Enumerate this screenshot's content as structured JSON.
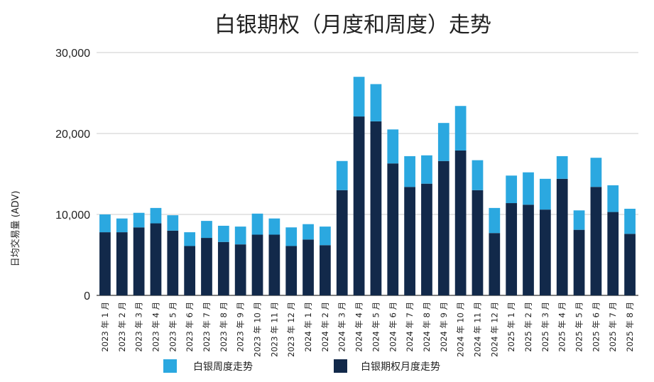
{
  "chart_data": {
    "type": "bar",
    "stacked": true,
    "title": "白银期权（月度和周度）走势",
    "ylabel": "日均交易量 (ADV)",
    "xlabel": "",
    "ylim": [
      0,
      30000
    ],
    "yticks": [
      "0",
      "10,000",
      "20,000",
      "30,000"
    ],
    "ytick_values": [
      0,
      10000,
      20000,
      30000
    ],
    "grid": true,
    "legend_position": "bottom",
    "categories": [
      "2023 年 1 月",
      "2023 年 2 月",
      "2023 年 3 月",
      "2023 年 4 月",
      "2023 年 5 月",
      "2023 年 6 月",
      "2023 年 7 月",
      "2023 年 8 月",
      "2023 年 9 月",
      "2023 年 10 月",
      "2023 年 11 月",
      "2023 年 12 月",
      "2024 年 1 月",
      "2024 年 2 月",
      "2024 年 3 月",
      "2024 年 4 月",
      "2024 年 5 月",
      "2024 年 6 月",
      "2024 年 7 月",
      "2024 年 8 月",
      "2024 年 9 月",
      "2024 年 10 月",
      "2024 年 11 月",
      "2024 年 12 月",
      "2025 年 1 月",
      "2025 年 2 月",
      "2025 年 3 月",
      "2025 年 4 月",
      "2025 年 5 月",
      "2025 年 6 月",
      "2025 年 7 月",
      "2025 年 8 月"
    ],
    "series": [
      {
        "name": "白银期权月度走势",
        "color": "#12294a",
        "values": [
          7800,
          7800,
          8400,
          8900,
          8000,
          6100,
          7100,
          6600,
          6300,
          7500,
          7500,
          6100,
          6900,
          6200,
          13000,
          22100,
          21500,
          16300,
          13400,
          13800,
          16600,
          17900,
          13000,
          7700,
          11400,
          11200,
          10600,
          14400,
          8100,
          13400,
          10300,
          7600
        ]
      },
      {
        "name": "白银周度走势",
        "color": "#2ba8e0",
        "values": [
          2200,
          1700,
          1800,
          1900,
          1900,
          1700,
          2100,
          2000,
          2200,
          2600,
          2000,
          2300,
          1900,
          2300,
          3600,
          4900,
          4600,
          4200,
          3800,
          3500,
          4700,
          5500,
          3700,
          3100,
          3400,
          4000,
          3800,
          2800,
          2400,
          3600,
          3300,
          3100
        ]
      }
    ],
    "legend": [
      {
        "label": "白银周度走势",
        "color": "#2ba8e0"
      },
      {
        "label": "白银期权月度走势",
        "color": "#12294a"
      }
    ]
  }
}
